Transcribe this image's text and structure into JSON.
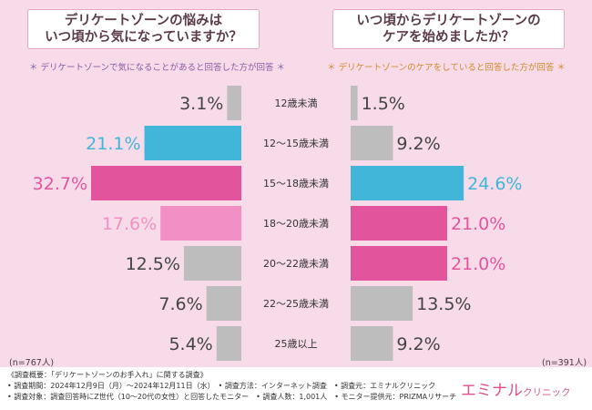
{
  "left_panel": {
    "title_line1": "デリケートゾーンの悩みは",
    "title_line2": "いつ頃から気になっていますか？",
    "subtitle": "＊ デリケートゾーンで気になることがあると回答した方が回答 ＊",
    "n_label": "(n=767人)"
  },
  "right_panel": {
    "title_line1": "いつ頃からデリケートゾーンの",
    "title_line2": "ケアを始めましたか？",
    "subtitle": "＊ デリケートゾーンのケアをしていると回答した方が回答 ＊",
    "n_label": "(n=391人)"
  },
  "chart_data": {
    "type": "bar",
    "orientation": "horizontal-butterfly",
    "categories": [
      "12歳未満",
      "12～15歳未満",
      "15～18歳未満",
      "18～20歳未満",
      "20～22歳未満",
      "22～25歳未満",
      "25歳以上"
    ],
    "unit": "%",
    "xlim": [
      0,
      35
    ],
    "series": [
      {
        "name": "デリケートゾーンの悩みはいつ頃から気になっていますか？",
        "side": "left",
        "values": [
          3.1,
          21.1,
          32.7,
          17.6,
          12.5,
          7.6,
          5.4
        ],
        "colors": [
          "#bdbdbd",
          "#41b6d8",
          "#e2559d",
          "#f28fc4",
          "#bdbdbd",
          "#bdbdbd",
          "#bdbdbd"
        ]
      },
      {
        "name": "いつ頃からデリケートゾーンのケアを始めましたか？",
        "side": "right",
        "values": [
          1.5,
          9.2,
          24.6,
          21.0,
          21.0,
          13.5,
          9.2
        ],
        "colors": [
          "#bdbdbd",
          "#bdbdbd",
          "#41b6d8",
          "#e2559d",
          "#e2559d",
          "#bdbdbd",
          "#bdbdbd"
        ]
      }
    ],
    "value_labels_left": [
      "3.1%",
      "21.1%",
      "32.7%",
      "17.6%",
      "12.5%",
      "7.6%",
      "5.4%"
    ],
    "value_labels_right": [
      "1.5%",
      "9.2%",
      "24.6%",
      "21.0%",
      "21.0%",
      "13.5%",
      "9.2%"
    ]
  },
  "footer": {
    "line1": "《調査概要：「デリケートゾーンのお手入れ」に関する調査》",
    "line2": "• 調査期間：2024年12月9日（月）～2024年12月11日（水）　• 調査方法：インターネット調査　• 調査元：エミナルクリニック",
    "line3": "• 調査対象：調査回答時にZ世代（10～20代の女性）と回答したモニター　• 調査人数：1,001人　• モニター提供元：PRIZMAリサーチ",
    "brand_main": "エミナル",
    "brand_sub": "クリニック",
    "colors": {
      "accent": "#e0508e",
      "background": "#f7dbe8"
    }
  }
}
